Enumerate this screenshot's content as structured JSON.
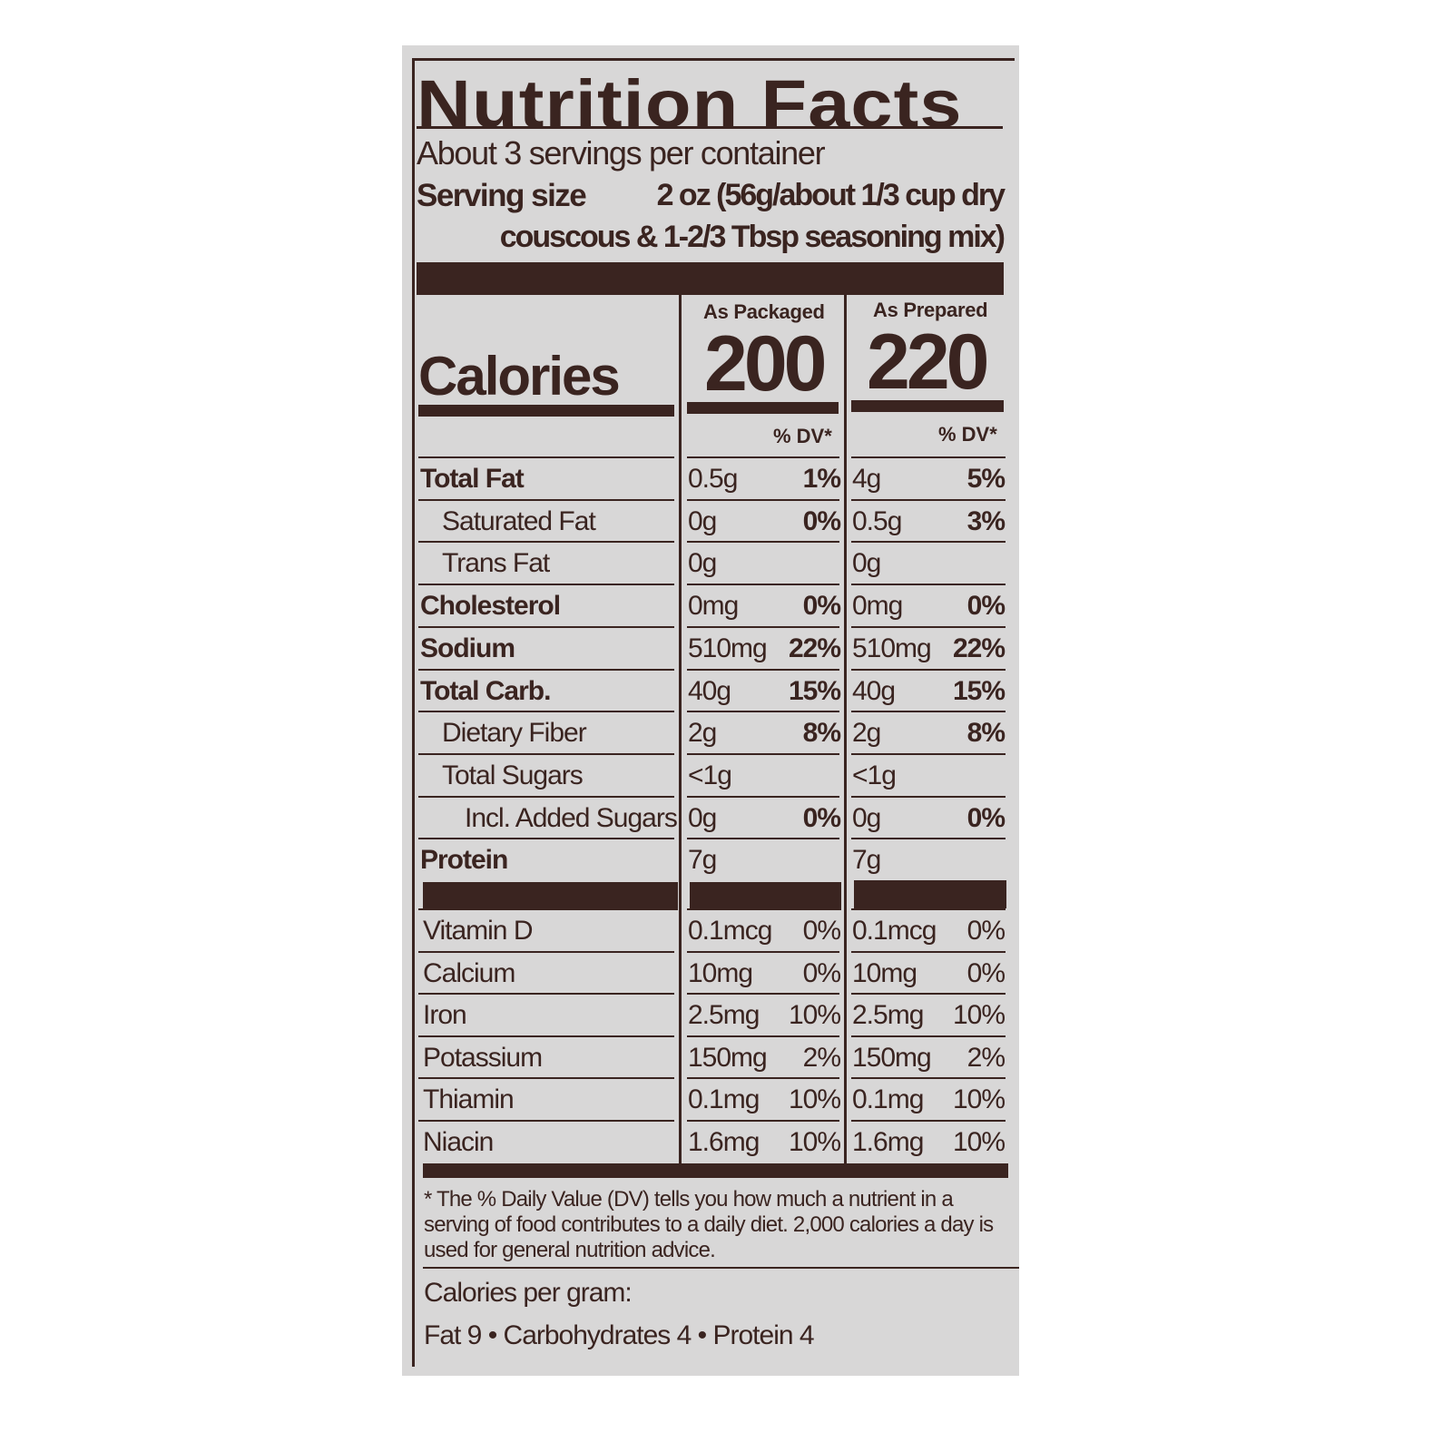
{
  "title": "Nutrition Facts",
  "servings_per_container": "About 3 servings per container",
  "serving_size_label": "Serving size",
  "serving_size_line1": "2 oz (56g/about 1/3 cup dry",
  "serving_size_line2": "couscous & 1-2/3 Tbsp seasoning mix)",
  "calories_label": "Calories",
  "columns": [
    {
      "heading": "As Packaged",
      "calories": "200",
      "dv_label": "% DV*"
    },
    {
      "heading": "As Prepared",
      "calories": "220",
      "dv_label": "% DV*"
    }
  ],
  "nutrients": [
    {
      "name": "Total Fat",
      "bold": true,
      "indent": 0,
      "packaged": {
        "amount": "0.5g",
        "dv": "1%"
      },
      "prepared": {
        "amount": "4g",
        "dv": "5%"
      }
    },
    {
      "name": "Saturated Fat",
      "bold": false,
      "indent": 1,
      "packaged": {
        "amount": "0g",
        "dv": "0%"
      },
      "prepared": {
        "amount": "0.5g",
        "dv": "3%"
      }
    },
    {
      "name": "Trans Fat",
      "bold": false,
      "indent": 1,
      "packaged": {
        "amount": "0g",
        "dv": ""
      },
      "prepared": {
        "amount": "0g",
        "dv": ""
      }
    },
    {
      "name": "Cholesterol",
      "bold": true,
      "indent": 0,
      "packaged": {
        "amount": "0mg",
        "dv": "0%"
      },
      "prepared": {
        "amount": "0mg",
        "dv": "0%"
      }
    },
    {
      "name": "Sodium",
      "bold": true,
      "indent": 0,
      "packaged": {
        "amount": "510mg",
        "dv": "22%"
      },
      "prepared": {
        "amount": "510mg",
        "dv": "22%"
      }
    },
    {
      "name": "Total Carb.",
      "bold": true,
      "indent": 0,
      "packaged": {
        "amount": "40g",
        "dv": "15%"
      },
      "prepared": {
        "amount": "40g",
        "dv": "15%"
      }
    },
    {
      "name": "Dietary Fiber",
      "bold": false,
      "indent": 1,
      "packaged": {
        "amount": "2g",
        "dv": "8%"
      },
      "prepared": {
        "amount": "2g",
        "dv": "8%"
      }
    },
    {
      "name": "Total Sugars",
      "bold": false,
      "indent": 1,
      "packaged": {
        "amount": "<1g",
        "dv": ""
      },
      "prepared": {
        "amount": "<1g",
        "dv": ""
      }
    },
    {
      "name": "Incl. Added Sugars",
      "bold": false,
      "indent": 2,
      "packaged": {
        "amount": "0g",
        "dv": "0%"
      },
      "prepared": {
        "amount": "0g",
        "dv": "0%"
      }
    },
    {
      "name": "Protein",
      "bold": true,
      "indent": 0,
      "packaged": {
        "amount": "7g",
        "dv": ""
      },
      "prepared": {
        "amount": "7g",
        "dv": ""
      }
    }
  ],
  "vitamins": [
    {
      "name": "Vitamin D",
      "packaged": {
        "amount": "0.1mcg",
        "dv": "0%"
      },
      "prepared": {
        "amount": "0.1mcg",
        "dv": "0%"
      }
    },
    {
      "name": "Calcium",
      "packaged": {
        "amount": "10mg",
        "dv": "0%"
      },
      "prepared": {
        "amount": "10mg",
        "dv": "0%"
      }
    },
    {
      "name": "Iron",
      "packaged": {
        "amount": "2.5mg",
        "dv": "10%"
      },
      "prepared": {
        "amount": "2.5mg",
        "dv": "10%"
      }
    },
    {
      "name": "Potassium",
      "packaged": {
        "amount": "150mg",
        "dv": "2%"
      },
      "prepared": {
        "amount": "150mg",
        "dv": "2%"
      }
    },
    {
      "name": "Thiamin",
      "packaged": {
        "amount": "0.1mg",
        "dv": "10%"
      },
      "prepared": {
        "amount": "0.1mg",
        "dv": "10%"
      }
    },
    {
      "name": "Niacin",
      "packaged": {
        "amount": "1.6mg",
        "dv": "10%"
      },
      "prepared": {
        "amount": "1.6mg",
        "dv": "10%"
      }
    }
  ],
  "footnote": "* The % Daily Value (DV) tells you how much a nutrient in a serving of food contributes to a daily diet. 2,000 calories a day is used for general nutrition advice.",
  "calories_per_gram_label": "Calories per gram:",
  "calories_per_gram_values": "Fat 9 • Carbohydrates 4 • Protein 4",
  "colors": {
    "ink": "#3a2420",
    "label_background": "#d8d7d7"
  }
}
